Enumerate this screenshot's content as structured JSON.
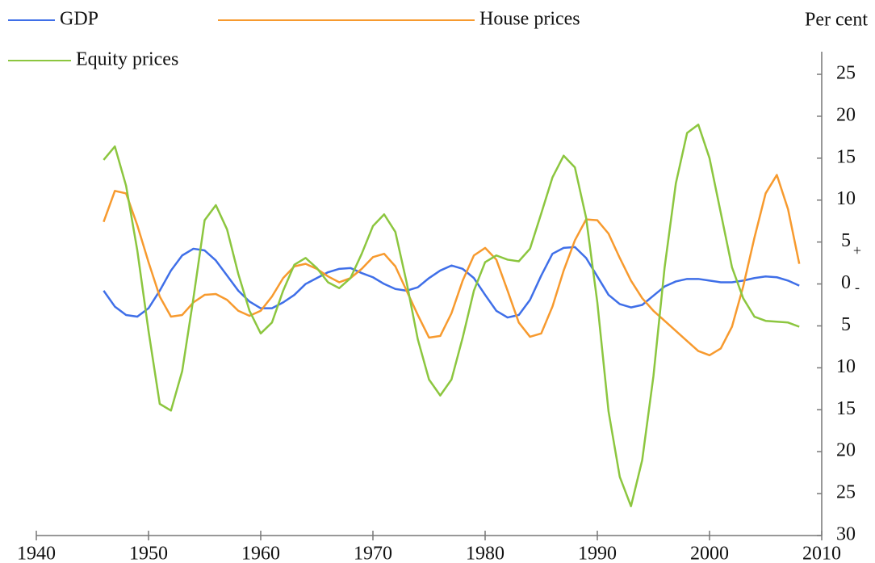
{
  "chart_data": {
    "type": "line",
    "y_label": "Per cent",
    "y_sign_labels": [
      "+",
      "-"
    ],
    "x": [
      1946,
      1947,
      1948,
      1949,
      1950,
      1951,
      1952,
      1953,
      1954,
      1955,
      1956,
      1957,
      1958,
      1959,
      1960,
      1961,
      1962,
      1963,
      1964,
      1965,
      1966,
      1967,
      1968,
      1969,
      1970,
      1971,
      1972,
      1973,
      1974,
      1975,
      1976,
      1977,
      1978,
      1979,
      1980,
      1981,
      1982,
      1983,
      1984,
      1985,
      1986,
      1987,
      1988,
      1989,
      1990,
      1991,
      1992,
      1993,
      1994,
      1995,
      1996,
      1997,
      1998,
      1999,
      2000,
      2001,
      2002,
      2003,
      2004,
      2005,
      2006,
      2007,
      2008
    ],
    "series": [
      {
        "name": "GDP",
        "color": "#3f6fe8",
        "values": [
          -0.8,
          -2.7,
          -3.7,
          -3.9,
          -2.9,
          -0.8,
          1.6,
          3.4,
          4.2,
          4.0,
          2.8,
          1.0,
          -0.8,
          -2.1,
          -2.9,
          -2.9,
          -2.2,
          -1.3,
          0,
          0.7,
          1.4,
          1.8,
          1.9,
          1.3,
          0.8,
          0,
          -0.6,
          -0.8,
          -0.4,
          0.7,
          1.6,
          2.2,
          1.8,
          0.7,
          -1.3,
          -3.2,
          -4.0,
          -3.7,
          -1.9,
          1.0,
          3.6,
          4.3,
          4.4,
          3.1,
          0.9,
          -1.3,
          -2.4,
          -2.8,
          -2.5,
          -1.4,
          -0.3,
          0.3,
          0.6,
          0.6,
          0.4,
          0.2,
          0.2,
          0.4,
          0.7,
          0.9,
          0.8,
          0.4,
          -0.2
        ]
      },
      {
        "name": "House prices",
        "color": "#f79a2e",
        "values": [
          7.4,
          11.1,
          10.8,
          7.0,
          2.6,
          -1.5,
          -3.9,
          -3.7,
          -2.2,
          -1.3,
          -1.2,
          -1.9,
          -3.2,
          -3.8,
          -3.2,
          -1.5,
          0.7,
          2.1,
          2.4,
          1.8,
          0.9,
          0.2,
          0.7,
          1.8,
          3.2,
          3.6,
          2.1,
          -0.8,
          -3.7,
          -6.4,
          -6.2,
          -3.5,
          0.4,
          3.4,
          4.3,
          2.9,
          -0.8,
          -4.6,
          -6.3,
          -5.9,
          -2.7,
          1.6,
          5.2,
          7.7,
          7.6,
          6.0,
          3.1,
          0.4,
          -1.7,
          -3.2,
          -4.4,
          -5.6,
          -6.8,
          -8.0,
          -8.5,
          -7.7,
          -5.1,
          -0.3,
          5.5,
          10.8,
          13.0,
          8.9,
          2.4
        ]
      },
      {
        "name": "Equity prices",
        "color": "#8cc63f",
        "values": [
          14.8,
          16.4,
          11.7,
          4.0,
          -5.6,
          -14.3,
          -15.1,
          -10.4,
          -1.7,
          7.6,
          9.4,
          6.5,
          1.2,
          -3.2,
          -5.9,
          -4.6,
          -0.8,
          2.3,
          3.1,
          1.9,
          0.2,
          -0.5,
          0.7,
          3.6,
          6.9,
          8.3,
          6.2,
          0.2,
          -6.6,
          -11.4,
          -13.3,
          -11.4,
          -6.4,
          -0.8,
          2.6,
          3.4,
          2.9,
          2.7,
          4.2,
          8.4,
          12.7,
          15.3,
          13.9,
          7.9,
          -2.2,
          -15.2,
          -23,
          -26.5,
          -21,
          -11,
          2,
          12,
          18,
          19,
          15,
          8.5,
          2,
          -1.7,
          -3.9,
          -4.4,
          -4.5,
          -4.6,
          -5.1
        ]
      }
    ],
    "xlim": [
      1940,
      2010
    ],
    "xticks": [
      1940,
      1950,
      1960,
      1970,
      1980,
      1990,
      2000,
      2010
    ],
    "ylim": [
      -30,
      25
    ],
    "yticks": [
      25,
      20,
      15,
      10,
      5,
      0,
      {
        "value": -5,
        "label": "5"
      },
      {
        "value": -10,
        "label": "10"
      },
      {
        "value": -15,
        "label": "15"
      },
      {
        "value": -20,
        "label": "20"
      },
      {
        "value": -25,
        "label": "25"
      },
      {
        "value": -30,
        "label": "30"
      }
    ],
    "grid": false
  }
}
